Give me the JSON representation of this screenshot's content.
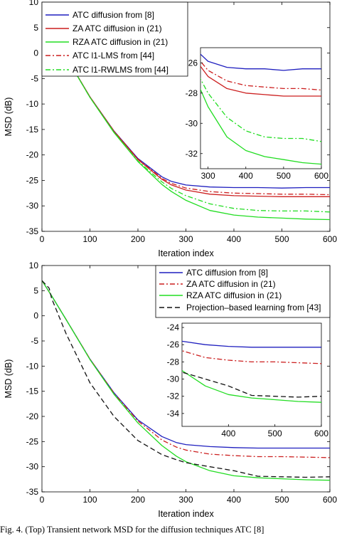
{
  "caption": "Fig. 4.   (Top) Transient network MSD for the diffusion techniques ATC [8]",
  "chart_data": [
    {
      "type": "line",
      "xlabel": "Iteration index",
      "ylabel": "MSD (dB)",
      "xlim": [
        0,
        600
      ],
      "ylim": [
        -35,
        10
      ],
      "xticks": [
        "0",
        "100",
        "200",
        "300",
        "400",
        "500",
        "600"
      ],
      "yticks": [
        "10",
        "5",
        "0",
        "-5",
        "-10",
        "-15",
        "-20",
        "-25",
        "-30",
        "-35"
      ],
      "legend_position": "top-left",
      "series": [
        {
          "name": "ATC diffusion from [8]",
          "color": "#1f1fbf",
          "dash": "solid",
          "x": [
            0,
            20,
            50,
            100,
            150,
            200,
            250,
            270,
            300,
            350,
            400,
            450,
            500,
            550,
            600
          ],
          "y": [
            7,
            4,
            -0.7,
            -8.6,
            -15.3,
            -20.7,
            -24.3,
            -25.2,
            -25.9,
            -26.3,
            -26.4,
            -26.4,
            -26.5,
            -26.4,
            -26.4
          ]
        },
        {
          "name": "ZA ATC diffusion in (21)",
          "color": "#cc1f1f",
          "dash": "solid",
          "x": [
            0,
            20,
            50,
            100,
            150,
            200,
            250,
            270,
            300,
            350,
            400,
            450,
            500,
            550,
            600
          ],
          "y": [
            7,
            4,
            -0.7,
            -8.6,
            -15.4,
            -20.9,
            -24.8,
            -25.9,
            -26.9,
            -27.7,
            -28.0,
            -28.1,
            -28.2,
            -28.2,
            -28.2
          ]
        },
        {
          "name": "RZA ATC diffusion in (21)",
          "color": "#22dd22",
          "dash": "solid",
          "x": [
            0,
            20,
            50,
            100,
            150,
            200,
            250,
            270,
            300,
            350,
            400,
            450,
            500,
            550,
            600
          ],
          "y": [
            7,
            4,
            -0.7,
            -8.7,
            -15.6,
            -21.3,
            -25.8,
            -27.2,
            -28.9,
            -30.9,
            -31.8,
            -32.2,
            -32.4,
            -32.6,
            -32.7
          ]
        },
        {
          "name": "ATC l1-LMS from [44]",
          "color": "#cc1f1f",
          "dash": "dashdot",
          "x": [
            0,
            20,
            50,
            100,
            150,
            200,
            250,
            270,
            300,
            350,
            400,
            450,
            500,
            550,
            600
          ],
          "y": [
            7,
            4,
            -0.7,
            -8.6,
            -15.3,
            -20.8,
            -24.6,
            -25.6,
            -26.5,
            -27.2,
            -27.5,
            -27.6,
            -27.7,
            -27.7,
            -27.8
          ]
        },
        {
          "name": "ATC l1-RWLMS from [44]",
          "color": "#22dd22",
          "dash": "dashdot",
          "x": [
            0,
            20,
            50,
            100,
            150,
            200,
            250,
            270,
            300,
            350,
            400,
            450,
            500,
            550,
            600
          ],
          "y": [
            7,
            4,
            -0.7,
            -8.7,
            -15.5,
            -21.2,
            -25.3,
            -26.6,
            -28.0,
            -29.6,
            -30.5,
            -30.9,
            -31.0,
            -31.0,
            -31.2
          ]
        }
      ],
      "inset": {
        "xlim": [
          280,
          600
        ],
        "ylim": [
          -33,
          -25
        ],
        "xticks": [
          "300",
          "400",
          "500",
          "600"
        ],
        "yticks": [
          "-26",
          "-28",
          "-30",
          "-32"
        ]
      }
    },
    {
      "type": "line",
      "xlabel": "Iteration index",
      "ylabel": "MSD (dB)",
      "xlim": [
        0,
        600
      ],
      "ylim": [
        -35,
        10
      ],
      "xticks": [
        "0",
        "100",
        "200",
        "300",
        "400",
        "500",
        "600"
      ],
      "yticks": [
        "10",
        "5",
        "0",
        "-5",
        "-10",
        "-15",
        "-20",
        "-25",
        "-30",
        "-35"
      ],
      "legend_position": "top-right",
      "series": [
        {
          "name": "ATC diffusion from [8]",
          "color": "#1f1fbf",
          "dash": "solid",
          "x": [
            0,
            20,
            50,
            100,
            150,
            200,
            250,
            280,
            300,
            350,
            400,
            450,
            500,
            550,
            600
          ],
          "y": [
            7,
            4,
            -0.7,
            -8.6,
            -15.3,
            -20.7,
            -24.0,
            -25.2,
            -25.6,
            -26.0,
            -26.2,
            -26.3,
            -26.3,
            -26.3,
            -26.3
          ]
        },
        {
          "name": "ZA ATC diffusion in (21)",
          "color": "#cc1f1f",
          "dash": "dashdot",
          "x": [
            0,
            20,
            50,
            100,
            150,
            200,
            250,
            280,
            300,
            350,
            400,
            450,
            500,
            550,
            600
          ],
          "y": [
            7,
            4,
            -0.7,
            -8.6,
            -15.4,
            -20.9,
            -24.7,
            -26.1,
            -26.7,
            -27.5,
            -27.8,
            -28.0,
            -28.0,
            -28.1,
            -28.2
          ]
        },
        {
          "name": "RZA ATC diffusion in (21)",
          "color": "#22dd22",
          "dash": "solid",
          "x": [
            0,
            20,
            50,
            100,
            150,
            200,
            250,
            280,
            300,
            350,
            400,
            450,
            500,
            550,
            600
          ],
          "y": [
            7,
            4,
            -0.7,
            -8.7,
            -15.6,
            -21.3,
            -25.8,
            -27.9,
            -29.0,
            -30.8,
            -31.8,
            -32.2,
            -32.4,
            -32.6,
            -32.7
          ]
        },
        {
          "name": "Projection–based learning from [43]",
          "color": "#111111",
          "dash": "dashed",
          "x": [
            0,
            15,
            20,
            50,
            100,
            150,
            200,
            250,
            280,
            300,
            350,
            400,
            450,
            500,
            550,
            600
          ],
          "y": [
            7,
            5.5,
            3.5,
            -3.5,
            -13.3,
            -20.0,
            -24.8,
            -27.6,
            -28.6,
            -29.2,
            -30.0,
            -30.8,
            -31.9,
            -32.0,
            -32.1,
            -32.0
          ]
        }
      ],
      "inset": {
        "xlim": [
          300,
          600
        ],
        "ylim": [
          -35.5,
          -23.5
        ],
        "xticks": [
          "400",
          "500",
          "600"
        ],
        "yticks": [
          "-24",
          "-26",
          "-28",
          "-30",
          "-32",
          "-34"
        ]
      }
    }
  ]
}
